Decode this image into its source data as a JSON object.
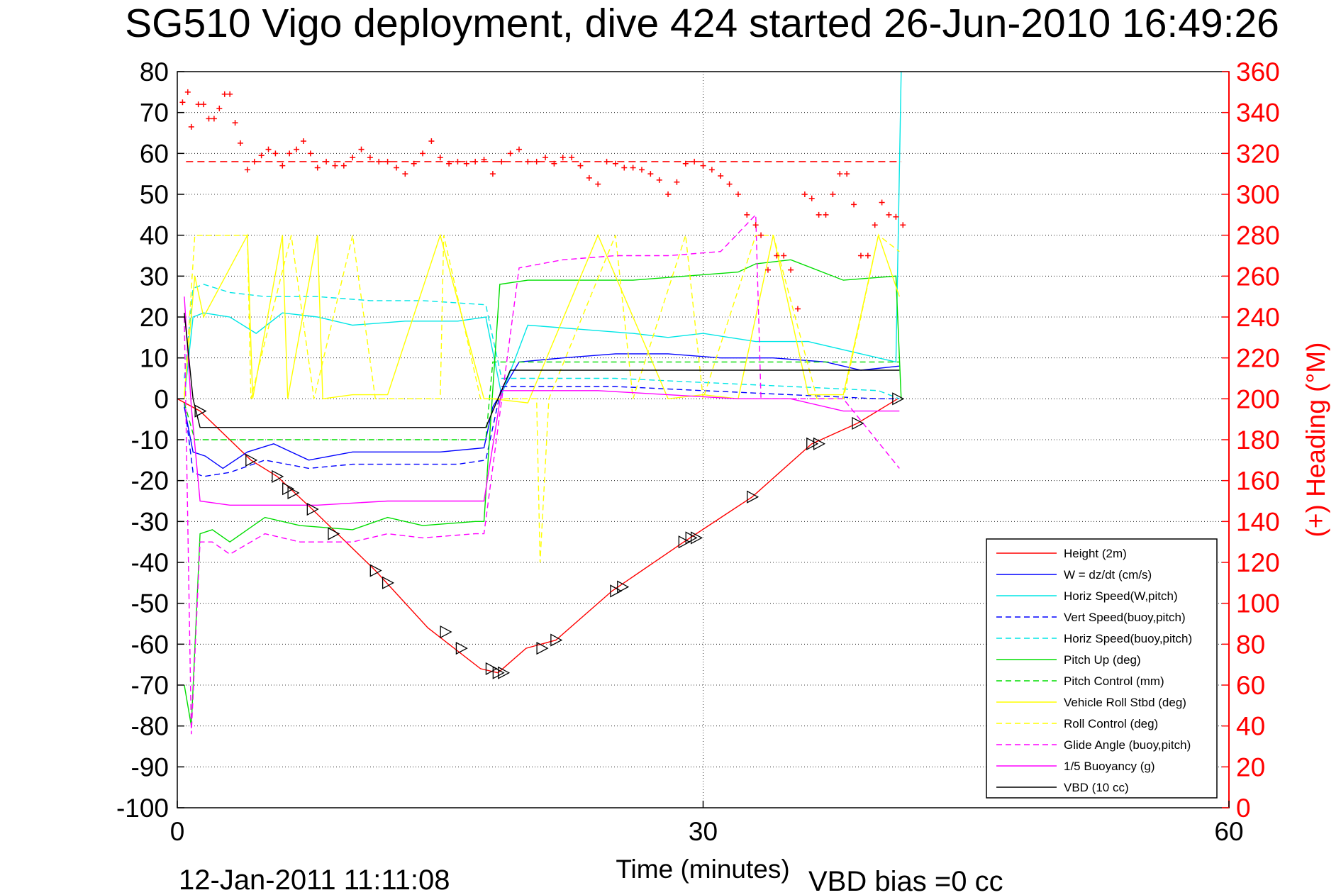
{
  "chart_data": {
    "type": "line",
    "title": "SG510 Vigo deployment, dive 424 started 26-Jun-2010 16:49:26",
    "xlabel": "Time (minutes)",
    "ylabel_right": "(+) Heading (°M)",
    "xlim": [
      0,
      60
    ],
    "ylim_left": [
      -100,
      80
    ],
    "ylim_right": [
      0,
      360
    ],
    "x_ticks": [
      "0",
      "30",
      "60"
    ],
    "y_ticks_left": [
      "80",
      "70",
      "60",
      "50",
      "40",
      "30",
      "20",
      "10",
      "0",
      "-10",
      "-20",
      "-30",
      "-40",
      "-50",
      "-60",
      "-70",
      "-80",
      "-90",
      "-100"
    ],
    "y_ticks_right": [
      "360",
      "340",
      "320",
      "300",
      "280",
      "260",
      "240",
      "220",
      "200",
      "180",
      "160",
      "140",
      "120",
      "100",
      "80",
      "60",
      "40",
      "20",
      "0"
    ],
    "grid": "dotted",
    "legend_position": "bottom-right",
    "footer_left": "12-Jan-2011 11:11:08",
    "footer_right": "VBD bias =0 cc",
    "series": [
      {
        "name": "Height (2m)",
        "color": "#ff0000",
        "style": "solid",
        "x": [
          0.0,
          1.3,
          4.2,
          5.7,
          7.7,
          11.3,
          14.3,
          17.3,
          18.3,
          19.9,
          21.6,
          24.8,
          28.9,
          32.8,
          36.2,
          38.8,
          41.1
        ],
        "y": [
          0,
          -3,
          -15,
          -19,
          -27,
          -42,
          -56,
          -66,
          -67,
          -61,
          -59,
          -47,
          -35,
          -24,
          -11,
          -6,
          0
        ]
      },
      {
        "name": "W = dz/dt (cm/s)",
        "color": "#0000ff",
        "style": "solid",
        "x": [
          0.4,
          0.9,
          1.6,
          2.6,
          4.0,
          5.5,
          7.5,
          10.0,
          12.5,
          15.0,
          17.5,
          18.0,
          19.5,
          22,
          25,
          28,
          31,
          34,
          37,
          39,
          41.2
        ],
        "y": [
          -2,
          -13,
          -14,
          -17,
          -13,
          -11,
          -15,
          -13,
          -13,
          -13,
          -12,
          -2,
          9,
          10,
          11,
          11,
          10,
          10,
          9,
          7,
          8
        ]
      },
      {
        "name": "Horiz Speed(W,pitch)",
        "color": "#00e6e6",
        "style": "solid",
        "x": [
          0.4,
          0.9,
          1.5,
          3.0,
          4.5,
          6.0,
          8.0,
          10.0,
          13.0,
          16.0,
          17.6,
          18.5,
          20,
          23,
          26,
          28,
          30,
          33,
          36,
          39,
          41.0,
          41.3
        ],
        "y": [
          0,
          20,
          21,
          20,
          16,
          21,
          20,
          18,
          19,
          19,
          20,
          1,
          18,
          17,
          16,
          15,
          16,
          14,
          14,
          11,
          9,
          80
        ]
      },
      {
        "name": "Vert Speed(buoy,pitch)",
        "color": "#0000ff",
        "style": "dashed",
        "x": [
          0.4,
          0.9,
          1.5,
          3.0,
          5.0,
          7.5,
          10.0,
          13.0,
          16.0,
          17.6,
          18.5,
          20,
          25,
          30,
          35,
          40,
          41.2
        ],
        "y": [
          -1,
          -18,
          -19,
          -18,
          -15,
          -17,
          -16,
          -16,
          -16,
          -15,
          3,
          3,
          3,
          2,
          1,
          0,
          0
        ]
      },
      {
        "name": "Horiz Speed(buoy,pitch)",
        "color": "#00e6e6",
        "style": "dashed",
        "x": [
          0.4,
          0.9,
          1.5,
          3.0,
          5.0,
          8.0,
          11.0,
          14.0,
          17.6,
          18.5,
          20,
          25,
          30,
          35,
          40,
          41.2
        ],
        "y": [
          5,
          27,
          28,
          26,
          25,
          25,
          24,
          24,
          23,
          5,
          5,
          5,
          4,
          3,
          2,
          0
        ]
      },
      {
        "name": "Pitch Up (deg)",
        "color": "#00dd00",
        "style": "solid",
        "x": [
          0.4,
          0.8,
          1.3,
          2.0,
          3.0,
          5.0,
          7.0,
          10.0,
          12.0,
          14.0,
          17.0,
          17.5,
          18.4,
          20,
          23,
          26,
          29,
          32,
          33,
          35,
          38,
          41,
          41.3
        ],
        "y": [
          -70,
          -80,
          -33,
          -32,
          -35,
          -29,
          -31,
          -32,
          -29,
          -31,
          -30,
          -30,
          28,
          29,
          29,
          29,
          30,
          31,
          33,
          34,
          29,
          30,
          0
        ]
      },
      {
        "name": "Pitch Control (mm)",
        "color": "#00dd00",
        "style": "dashed",
        "x": [
          0.4,
          1.0,
          17.6,
          18.0,
          41.2
        ],
        "y": [
          -1,
          -10,
          -10,
          9,
          9
        ]
      },
      {
        "name": "Vehicle Roll Stbd (deg)",
        "color": "#ffff00",
        "style": "solid",
        "x": [
          0.4,
          1.0,
          1.5,
          4.0,
          4.3,
          6.0,
          6.3,
          8.0,
          8.3,
          10,
          12,
          15,
          17.5,
          18,
          20,
          24,
          28,
          30,
          32,
          34,
          36,
          38,
          40,
          41.2
        ],
        "y": [
          1,
          30,
          20,
          40,
          0,
          40,
          0,
          40,
          0,
          1,
          1,
          40,
          0,
          0,
          -1,
          40,
          0,
          1,
          0,
          40,
          1,
          1,
          40,
          25
        ]
      },
      {
        "name": "Roll Control (deg)",
        "color": "#ffff00",
        "style": "dashed",
        "x": [
          0.4,
          1.0,
          1.5,
          4.0,
          4.2,
          6.5,
          7.8,
          10.0,
          11.3,
          13,
          15.0,
          15.2,
          17.3,
          17.5,
          20.5,
          20.7,
          21.2,
          25,
          26,
          29,
          30,
          33,
          34,
          36.5,
          38,
          40,
          41.2
        ],
        "y": [
          0,
          40,
          40,
          40,
          0,
          40,
          0,
          40,
          0,
          0,
          0,
          40,
          0,
          0,
          0,
          -40,
          0,
          40,
          0,
          40,
          0,
          40,
          40,
          0,
          0,
          40,
          36
        ]
      },
      {
        "name": "Glide Angle (buoy,pitch)",
        "color": "#ff00ff",
        "style": "dashed",
        "x": [
          0.4,
          0.8,
          1.3,
          2.0,
          3.0,
          5.0,
          7.0,
          10.0,
          12.0,
          14.0,
          17.0,
          17.5,
          19.5,
          22,
          25,
          28,
          31,
          33.0,
          33.3,
          35,
          38,
          41.2
        ],
        "y": [
          20,
          -82,
          -35,
          -35,
          -38,
          -33,
          -35,
          -35,
          -33,
          -34,
          -33,
          -33,
          32,
          34,
          35,
          35,
          36,
          45,
          0,
          0,
          0,
          -17
        ]
      },
      {
        "name": "1/5 Buoyancy (g)",
        "color": "#ff00ff",
        "style": "solid",
        "x": [
          0.4,
          0.8,
          1.3,
          3.0,
          5.0,
          8.0,
          12.0,
          17.5,
          18.5,
          20,
          24,
          28,
          32,
          35,
          38,
          41.2
        ],
        "y": [
          25,
          -2,
          -25,
          -26,
          -26,
          -26,
          -25,
          -25,
          2,
          2,
          2,
          1,
          0,
          0,
          -3,
          -3
        ]
      },
      {
        "name": "VBD (10 cc)",
        "color": "#000000",
        "style": "solid",
        "x": [
          0.4,
          0.9,
          1.3,
          17.6,
          19.0,
          41.2
        ],
        "y": [
          21,
          0,
          -7,
          -7,
          7,
          7
        ]
      },
      {
        "name": "Heading",
        "color": "#ff0000",
        "style": "markers",
        "axis": "right",
        "x": [
          0.3,
          0.6,
          0.8,
          1.2,
          1.5,
          1.8,
          2.1,
          2.4,
          2.7,
          3.0,
          3.3,
          3.6,
          4.0,
          4.4,
          4.8,
          5.2,
          5.6,
          6.0,
          6.4,
          6.8,
          7.2,
          7.6,
          8.0,
          8.5,
          9.0,
          9.5,
          10.0,
          10.5,
          11.0,
          11.5,
          12.0,
          12.5,
          13.0,
          13.5,
          14.0,
          14.5,
          15.0,
          15.5,
          16.0,
          16.5,
          17.0,
          17.5,
          18.0,
          18.5,
          19.0,
          19.5,
          20.0,
          20.5,
          21.0,
          21.5,
          22.0,
          22.5,
          23.0,
          23.5,
          24.0,
          24.5,
          25.0,
          25.5,
          26.0,
          26.5,
          27.0,
          27.5,
          28.0,
          28.5,
          29.0,
          29.5,
          30.0,
          30.5,
          31.0,
          31.5,
          32.0,
          32.5,
          33.0,
          33.3,
          33.7,
          34.2,
          34.6,
          35.0,
          35.4,
          35.8,
          36.2,
          36.6,
          37.0,
          37.4,
          37.8,
          38.2,
          38.6,
          39.0,
          39.4,
          39.8,
          40.2,
          40.6,
          41.0,
          41.4
        ],
        "y": [
          345,
          350,
          333,
          344,
          344,
          337,
          337,
          342,
          349,
          349,
          335,
          325,
          312,
          316,
          319,
          322,
          320,
          314,
          320,
          322,
          326,
          320,
          313,
          316,
          314,
          314,
          318,
          322,
          318,
          316,
          316,
          313,
          310,
          315,
          320,
          326,
          318,
          315,
          316,
          315,
          316,
          317,
          310,
          316,
          320,
          322,
          316,
          316,
          318,
          315,
          318,
          318,
          314,
          308,
          305,
          316,
          315,
          313,
          313,
          312,
          310,
          307,
          300,
          306,
          315,
          316,
          314,
          312,
          309,
          305,
          300,
          290,
          285,
          280,
          263,
          270,
          270,
          263,
          244,
          300,
          298,
          290,
          290,
          300,
          310,
          310,
          295,
          270,
          270,
          285,
          296,
          290,
          289,
          285
        ]
      }
    ],
    "markers": {
      "name": "Height (2m) triangles",
      "color": "#000000",
      "x": [
        1.3,
        4.2,
        5.7,
        6.3,
        6.6,
        7.7,
        8.9,
        11.3,
        12.0,
        15.3,
        16.2,
        17.9,
        18.3,
        18.6,
        20.8,
        21.6,
        25.0,
        25.4,
        28.9,
        29.3,
        29.6,
        32.8,
        36.2,
        36.6,
        38.8,
        41.1
      ],
      "y": [
        -3,
        -15,
        -19,
        -22,
        -23,
        -27,
        -33,
        -42,
        -45,
        -57,
        -61,
        -66,
        -67,
        -67,
        -61,
        -59,
        -47,
        -46,
        -35,
        -34,
        -34,
        -24,
        -11,
        -11,
        -6,
        0
      ]
    },
    "reference_lines": [
      {
        "axis": "right",
        "y": 316,
        "color": "#ff0000",
        "style": "dashed",
        "x": [
          0.5,
          41.3
        ]
      }
    ]
  },
  "legend_items": [
    {
      "name": "Height (2m)",
      "color": "#ff0000",
      "style": "solid"
    },
    {
      "name": "W = dz/dt (cm/s)",
      "color": "#0000ff",
      "style": "solid"
    },
    {
      "name": "Horiz Speed(W,pitch)",
      "color": "#00e6e6",
      "style": "solid"
    },
    {
      "name": "Vert Speed(buoy,pitch)",
      "color": "#0000ff",
      "style": "dashed"
    },
    {
      "name": "Horiz Speed(buoy,pitch)",
      "color": "#00e6e6",
      "style": "dashed"
    },
    {
      "name": "Pitch Up (deg)",
      "color": "#00dd00",
      "style": "solid"
    },
    {
      "name": "Pitch Control (mm)",
      "color": "#00dd00",
      "style": "dashed"
    },
    {
      "name": "Vehicle Roll Stbd (deg)",
      "color": "#ffff00",
      "style": "solid"
    },
    {
      "name": "Roll Control (deg)",
      "color": "#ffff00",
      "style": "dashed"
    },
    {
      "name": "Glide Angle (buoy,pitch)",
      "color": "#ff00ff",
      "style": "dashed"
    },
    {
      "name": "1/5 Buoyancy (g)",
      "color": "#ff00ff",
      "style": "solid"
    },
    {
      "name": "VBD (10 cc)",
      "color": "#000000",
      "style": "solid"
    }
  ]
}
